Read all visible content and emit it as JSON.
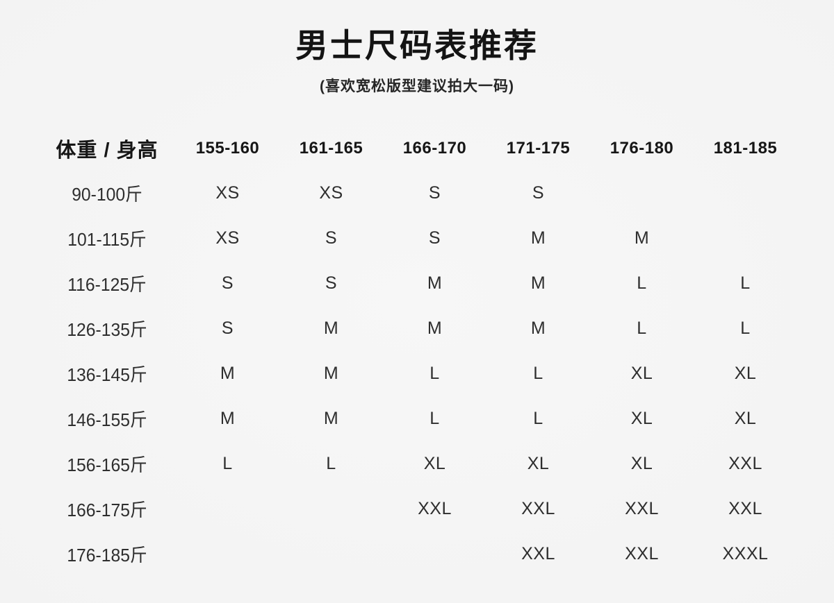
{
  "page": {
    "background_color": "#f5f5f5",
    "text_color": "#1f1f1f"
  },
  "title": "男士尺码表推荐",
  "subtitle": "(喜欢宽松版型建议拍大一码)",
  "table": {
    "header": [
      "体重 / 身高",
      "155-160",
      "161-165",
      "166-170",
      "171-175",
      "176-180",
      "181-185"
    ],
    "rows": [
      {
        "weight": "90-100斤",
        "sizes": [
          "XS",
          "XS",
          "S",
          "S",
          "",
          ""
        ]
      },
      {
        "weight": "101-115斤",
        "sizes": [
          "XS",
          "S",
          "S",
          "M",
          "M",
          ""
        ]
      },
      {
        "weight": "116-125斤",
        "sizes": [
          "S",
          "S",
          "M",
          "M",
          "L",
          "L"
        ]
      },
      {
        "weight": "126-135斤",
        "sizes": [
          "S",
          "M",
          "M",
          "M",
          "L",
          "L"
        ]
      },
      {
        "weight": "136-145斤",
        "sizes": [
          "M",
          "M",
          "L",
          "L",
          "XL",
          "XL"
        ]
      },
      {
        "weight": "146-155斤",
        "sizes": [
          "M",
          "M",
          "L",
          "L",
          "XL",
          "XL"
        ]
      },
      {
        "weight": "156-165斤",
        "sizes": [
          "L",
          "L",
          "XL",
          "XL",
          "XL",
          "XXL"
        ]
      },
      {
        "weight": "166-175斤",
        "sizes": [
          "",
          "",
          "XXL",
          "XXL",
          "XXL",
          "XXL"
        ]
      },
      {
        "weight": "176-185斤",
        "sizes": [
          "",
          "",
          "",
          "XXL",
          "XXL",
          "XXXL"
        ]
      }
    ]
  }
}
